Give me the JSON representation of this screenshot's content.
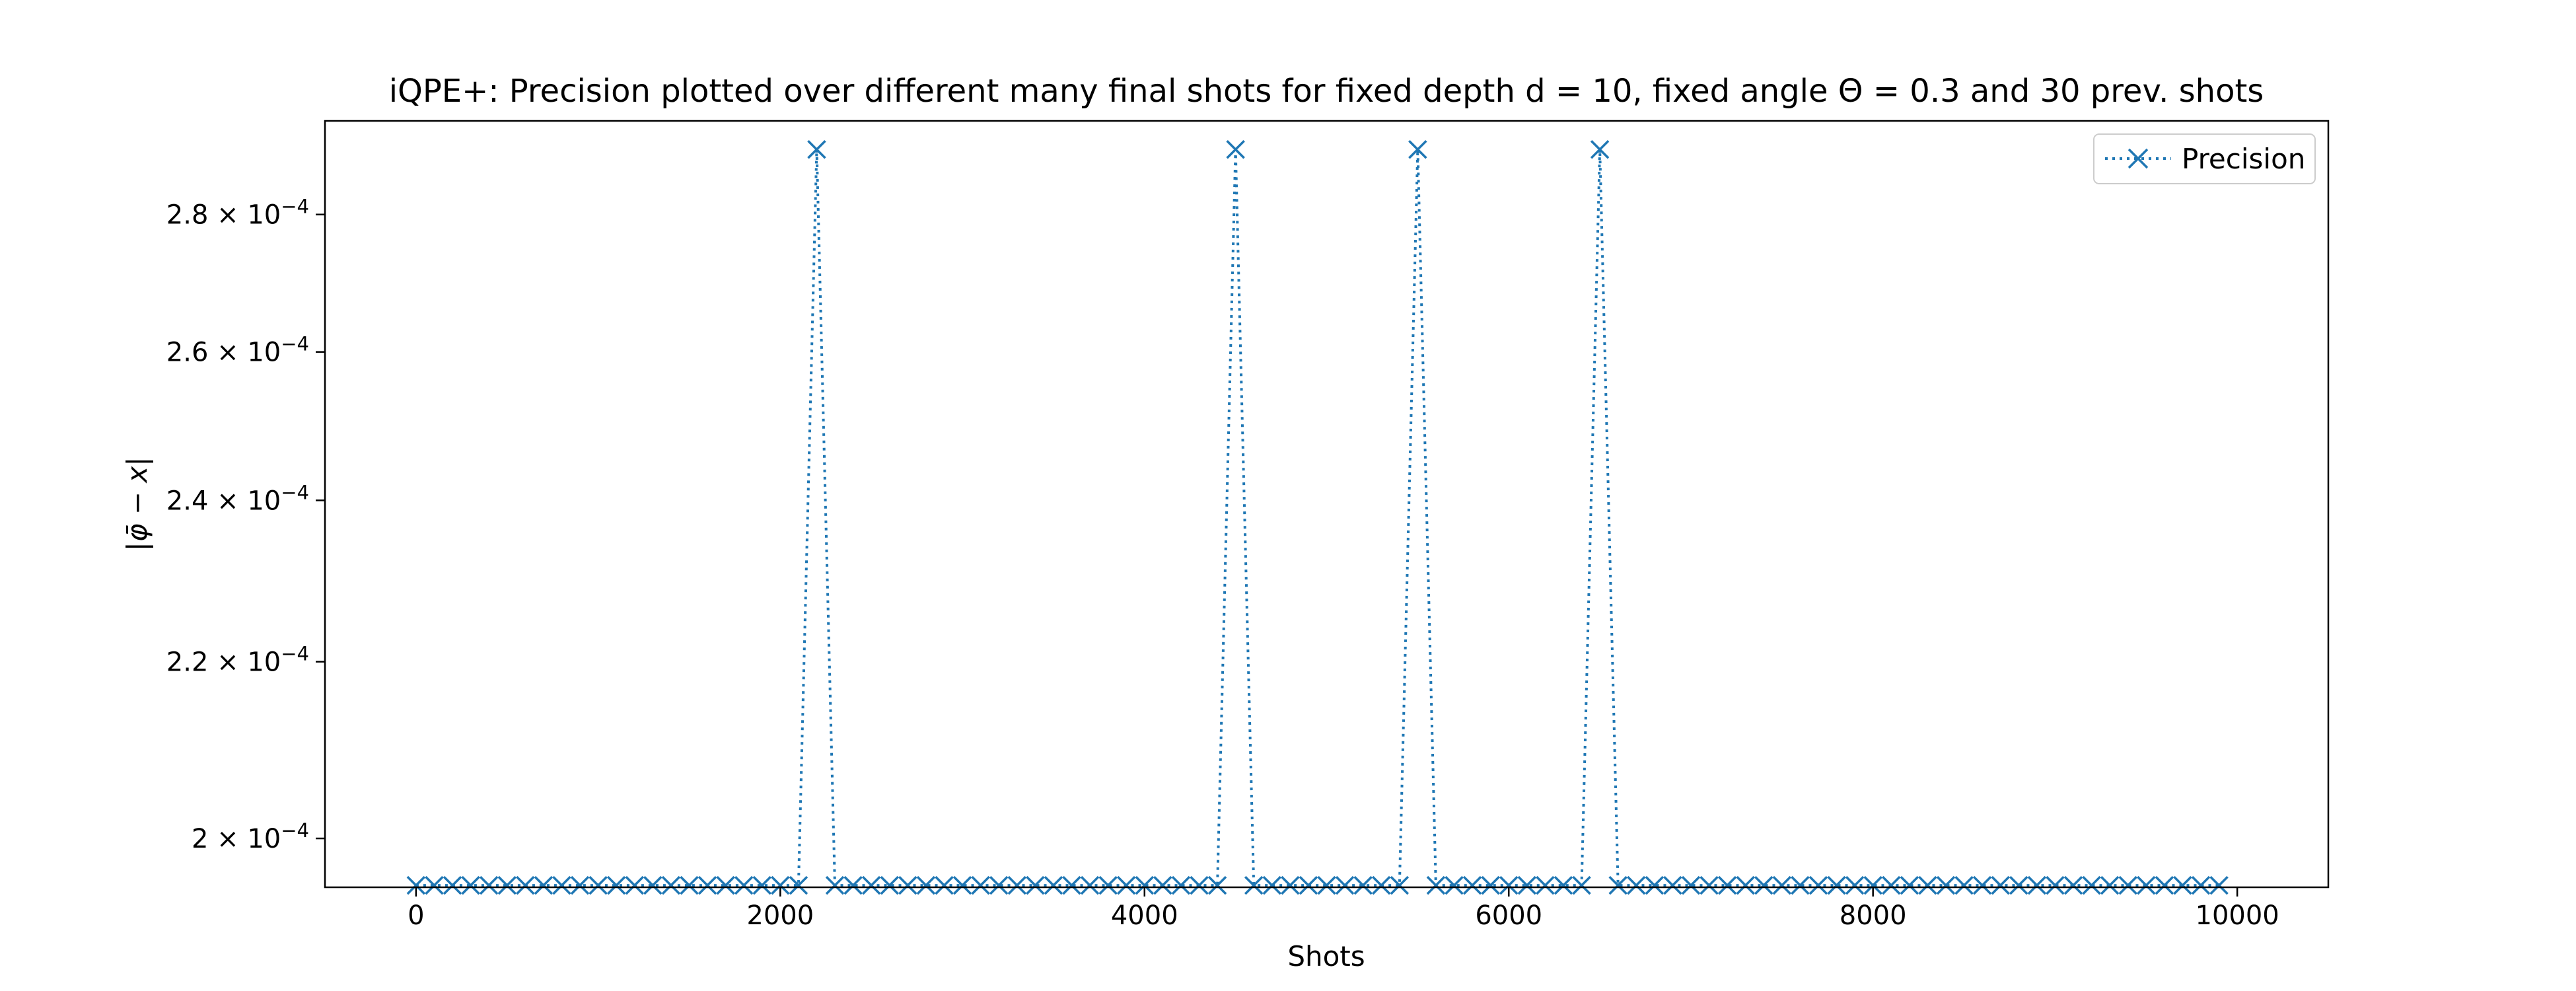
{
  "chart_data": {
    "type": "line",
    "title": "iQPE+: Precision plotted over different many final shots for fixed depth d = 10, fixed angle Θ = 0.3 and 30 prev. shots",
    "xlabel": "Shots",
    "ylabel": "|φ̄ − x|",
    "xlim": [
      -500,
      10500
    ],
    "ylim": [
      0.0001948,
      0.0002945
    ],
    "y_scale": "log",
    "x_ticks": [
      0,
      2000,
      4000,
      6000,
      8000,
      10000
    ],
    "x_tick_labels": [
      "0",
      "2000",
      "4000",
      "6000",
      "8000",
      "10000"
    ],
    "y_ticks": [
      {
        "value": 0.0002,
        "mantissa": "2",
        "exponent": "−4"
      },
      {
        "value": 0.00022,
        "mantissa": "2.2",
        "exponent": "−4"
      },
      {
        "value": 0.00024,
        "mantissa": "2.4",
        "exponent": "−4"
      },
      {
        "value": 0.00026,
        "mantissa": "2.6",
        "exponent": "−4"
      },
      {
        "value": 0.00028,
        "mantissa": "2.8",
        "exponent": "−4"
      }
    ],
    "grid": false,
    "legend": {
      "position": "top-right",
      "entries": [
        "Precision"
      ]
    },
    "series": [
      {
        "name": "Precision",
        "color": "#1f77b4",
        "line_style": "dotted",
        "marker": "x",
        "x": [
          0,
          100,
          200,
          300,
          400,
          500,
          600,
          700,
          800,
          900,
          1000,
          1100,
          1200,
          1300,
          1400,
          1500,
          1600,
          1700,
          1800,
          1900,
          2000,
          2100,
          2200,
          2300,
          2400,
          2500,
          2600,
          2700,
          2800,
          2900,
          3000,
          3100,
          3200,
          3300,
          3400,
          3500,
          3600,
          3700,
          3800,
          3900,
          4000,
          4100,
          4200,
          4300,
          4400,
          4500,
          4600,
          4700,
          4800,
          4900,
          5000,
          5100,
          5200,
          5300,
          5400,
          5500,
          5600,
          5700,
          5800,
          5900,
          6000,
          6100,
          6200,
          6300,
          6400,
          6500,
          6600,
          6700,
          6800,
          6900,
          7000,
          7100,
          7200,
          7300,
          7400,
          7500,
          7600,
          7700,
          7800,
          7900,
          8000,
          8100,
          8200,
          8300,
          8400,
          8500,
          8600,
          8700,
          8800,
          8900,
          9000,
          9100,
          9200,
          9300,
          9400,
          9500,
          9600,
          9700,
          9800,
          9900
        ],
        "y": [
          0.000195,
          0.000195,
          0.000195,
          0.000195,
          0.000195,
          0.000195,
          0.000195,
          0.000195,
          0.000195,
          0.000195,
          0.000195,
          0.000195,
          0.000195,
          0.000195,
          0.000195,
          0.000195,
          0.000195,
          0.000195,
          0.000195,
          0.000195,
          0.000195,
          0.000195,
          0.00029,
          0.000195,
          0.000195,
          0.000195,
          0.000195,
          0.000195,
          0.000195,
          0.000195,
          0.000195,
          0.000195,
          0.000195,
          0.000195,
          0.000195,
          0.000195,
          0.000195,
          0.000195,
          0.000195,
          0.000195,
          0.000195,
          0.000195,
          0.000195,
          0.000195,
          0.000195,
          0.00029,
          0.000195,
          0.000195,
          0.000195,
          0.000195,
          0.000195,
          0.000195,
          0.000195,
          0.000195,
          0.000195,
          0.00029,
          0.000195,
          0.000195,
          0.000195,
          0.000195,
          0.000195,
          0.000195,
          0.000195,
          0.000195,
          0.000195,
          0.00029,
          0.000195,
          0.000195,
          0.000195,
          0.000195,
          0.000195,
          0.000195,
          0.000195,
          0.000195,
          0.000195,
          0.000195,
          0.000195,
          0.000195,
          0.000195,
          0.000195,
          0.000195,
          0.000195,
          0.000195,
          0.000195,
          0.000195,
          0.000195,
          0.000195,
          0.000195,
          0.000195,
          0.000195,
          0.000195,
          0.000195,
          0.000195,
          0.000195,
          0.000195,
          0.000195,
          0.000195,
          0.000195,
          0.000195,
          0.000195
        ]
      }
    ]
  }
}
